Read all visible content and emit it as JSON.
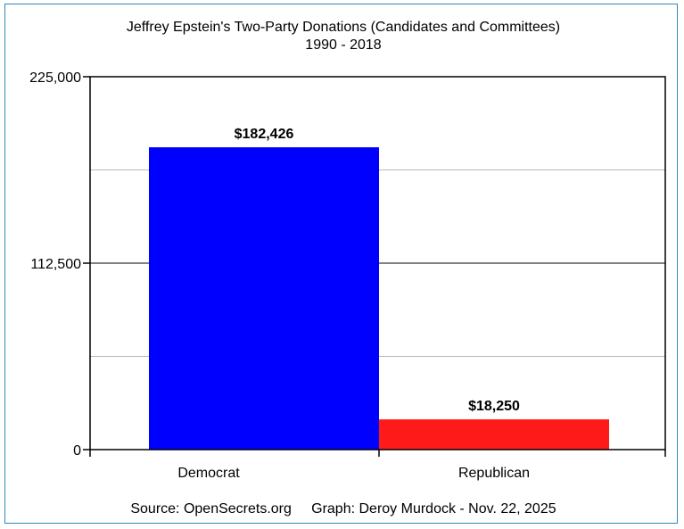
{
  "chart_data": {
    "type": "bar",
    "title": "Jeffrey Epstein's Two-Party Donations (Candidates and Committees)",
    "subtitle": "1990 - 2018",
    "categories": [
      "Democrat",
      "Republican"
    ],
    "values": [
      182426,
      18250
    ],
    "data_labels": [
      "$182,426",
      "$18,250"
    ],
    "colors": [
      "#0000ff",
      "#ff1a1a"
    ],
    "ylim": [
      0,
      225000
    ],
    "yticks": [
      0,
      112500,
      225000
    ],
    "ytick_labels": [
      "0",
      "112,500",
      "225,000"
    ],
    "minor_gridlines": [
      56250,
      168750
    ],
    "grid": true,
    "legend": "none",
    "footer": "Source: OpenSecrets.org     Graph: Deroy Murdock - Nov. 22, 2025"
  }
}
